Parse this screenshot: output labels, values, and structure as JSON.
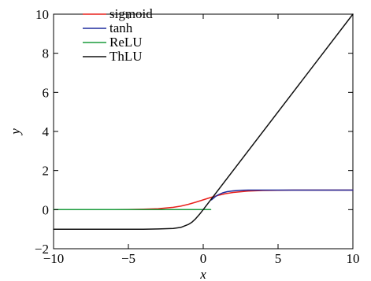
{
  "chart_data": {
    "type": "line",
    "title": "",
    "xlabel": "x",
    "ylabel": "y",
    "xlim": [
      -10,
      10
    ],
    "ylim": [
      -2,
      10
    ],
    "x_ticks": [
      -10,
      -5,
      0,
      5,
      10
    ],
    "x_tick_labels": [
      "−10",
      "−5",
      "0",
      "5",
      "10"
    ],
    "y_ticks": [
      -2,
      0,
      2,
      4,
      6,
      8,
      10
    ],
    "y_tick_labels": [
      "−2",
      "0",
      "2",
      "4",
      "6",
      "8",
      "10"
    ],
    "grid": false,
    "legend_position": "top-left",
    "series": [
      {
        "name": "sigmoid",
        "color": "#e8211c",
        "x": [
          -10,
          -8,
          -6,
          -5,
          -4,
          -3,
          -2,
          -1.5,
          -1,
          -0.5,
          0,
          0.5,
          1,
          1.5,
          2,
          3,
          4,
          5,
          6,
          8,
          10
        ],
        "y": [
          0.0,
          0.0,
          0.0,
          0.01,
          0.02,
          0.05,
          0.12,
          0.18,
          0.27,
          0.38,
          0.5,
          0.62,
          0.73,
          0.82,
          0.88,
          0.95,
          0.98,
          0.99,
          1.0,
          1.0,
          1.0
        ]
      },
      {
        "name": "tanh",
        "color": "#1f2c9e",
        "x": [
          0.55,
          0.8,
          1.0,
          1.3,
          1.6,
          2.0,
          2.5,
          3,
          4,
          5,
          6,
          8,
          10
        ],
        "y": [
          0.5,
          0.66,
          0.76,
          0.86,
          0.92,
          0.96,
          0.99,
          1.0,
          1.0,
          1.0,
          1.0,
          1.0,
          1.0
        ]
      },
      {
        "name": "ReLU",
        "color": "#1a9b3c",
        "x": [
          -10,
          -5,
          0,
          0.5
        ],
        "y": [
          0,
          0,
          0,
          0
        ]
      },
      {
        "name": "ThLU",
        "color": "#111111",
        "x": [
          -10,
          -6,
          -4,
          -3,
          -2,
          -1.5,
          -1,
          -0.75,
          -0.5,
          -0.25,
          0,
          10
        ],
        "y": [
          -1.0,
          -1.0,
          -1.0,
          -0.99,
          -0.96,
          -0.91,
          -0.76,
          -0.64,
          -0.46,
          -0.24,
          0,
          10
        ]
      }
    ]
  }
}
